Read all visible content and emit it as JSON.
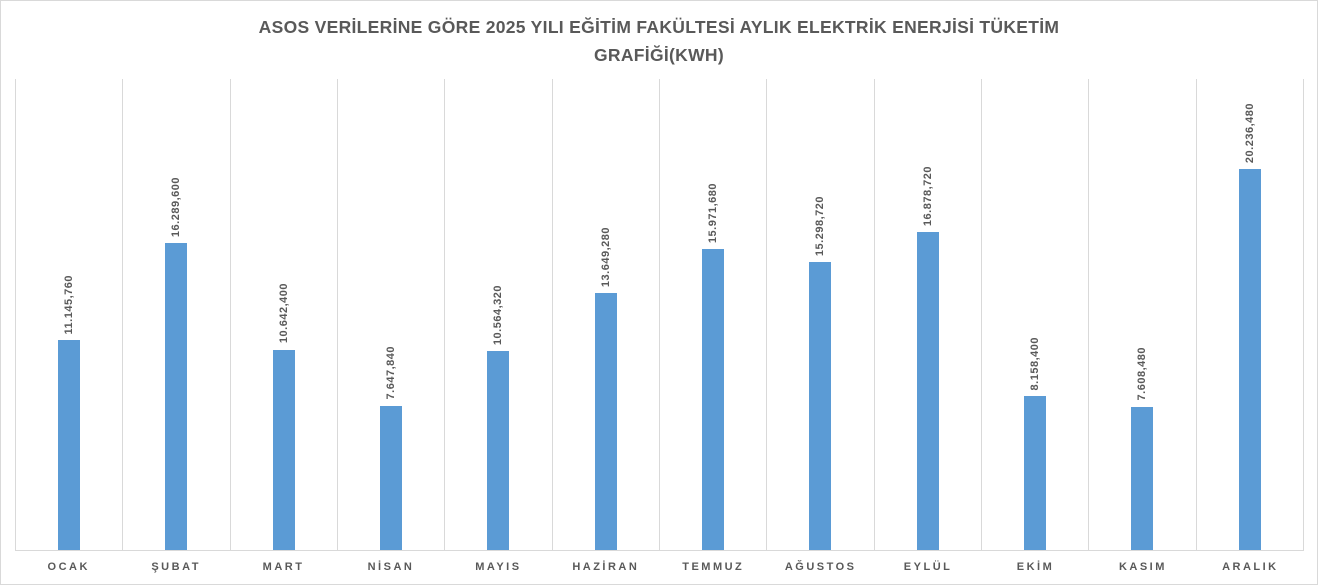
{
  "title": {
    "line1": "ASOS VERİLERİNE GÖRE 2025 YILI EĞİTİM FAKÜLTESİ AYLIK ELEKTRİK ENERJİSİ TÜKETİM",
    "line2": "GRAFİĞİ(KWH)"
  },
  "chart_data": {
    "type": "bar",
    "title": "ASOS VERİLERİNE GÖRE 2025 YILI EĞİTİM FAKÜLTESİ AYLIK ELEKTRİK ENERJİSİ TÜKETİM GRAFİĞİ(KWH)",
    "categories": [
      "OCAK",
      "ŞUBAT",
      "MART",
      "NİSAN",
      "MAYIS",
      "HAZİRAN",
      "TEMMUZ",
      "AĞUSTOS",
      "EYLÜL",
      "EKİM",
      "KASIM",
      "ARALIK"
    ],
    "values": [
      11145.76,
      16289.6,
      10642.4,
      7647.84,
      10564.32,
      13649.28,
      15971.68,
      15298.72,
      16878.72,
      8158.4,
      7608.48,
      20236.48
    ],
    "data_labels": [
      "11.145,760",
      "16.289,600",
      "10.642,400",
      "7.647,840",
      "10.564,320",
      "13.649,280",
      "15.971,680",
      "15.298,720",
      "16.878,720",
      "8.158,400",
      "7.608,480",
      "20.236,480"
    ],
    "xlabel": "",
    "ylabel": "",
    "ylim": [
      0,
      25000
    ],
    "grid": "vertical-category-separators",
    "legend": "none",
    "data_label_rotation": 90,
    "colors": {
      "bar": "#5b9bd5",
      "grid": "#d9d9d9",
      "text": "#595959"
    }
  }
}
